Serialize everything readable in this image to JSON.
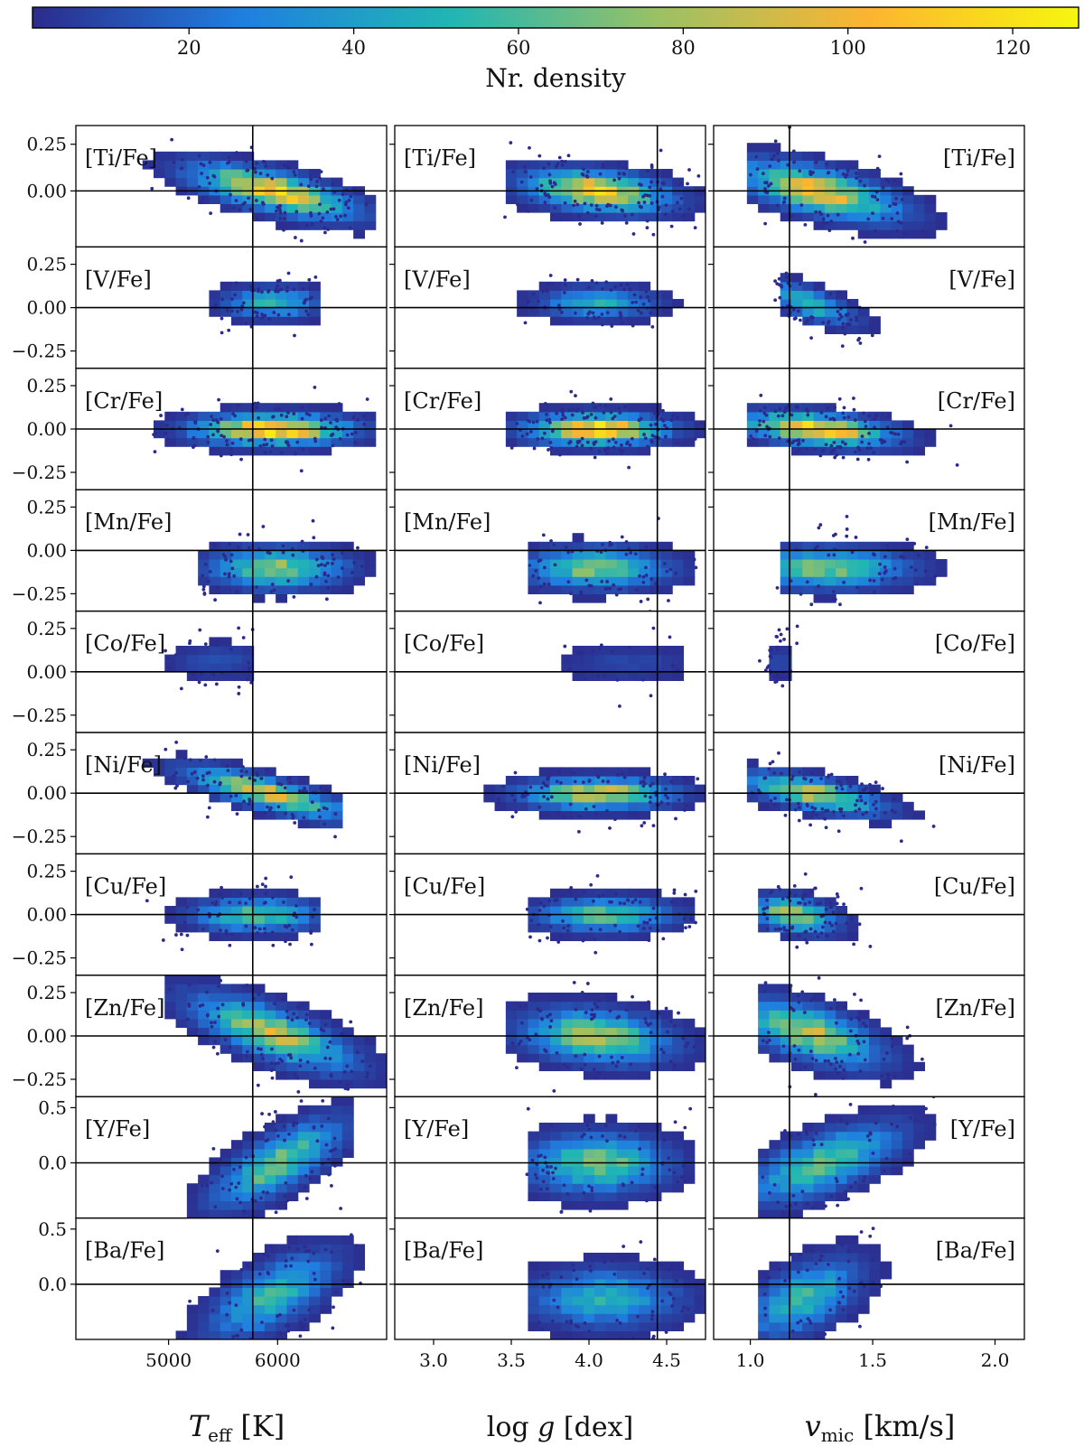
{
  "colorbar": {
    "label": "Nr. density",
    "range": [
      1,
      128
    ],
    "ticks": [
      20,
      40,
      60,
      80,
      100,
      120
    ],
    "colormap": [
      "#440154",
      "#3b528b",
      "#21918c",
      "#5ec962",
      "#fde725"
    ],
    "display_colormap": [
      "#2c2b8c",
      "#1f7fe0",
      "#20b6b4",
      "#9cc164",
      "#fdb430",
      "#f6f60f"
    ]
  },
  "columns": [
    {
      "key": "teff",
      "xlabel": "T_eff [K]",
      "xlabel_main": "T",
      "xlabel_sub": "eff",
      "xlabel_units": " [K]",
      "xlim": [
        4150,
        7000
      ],
      "xticks": [
        5000,
        6000
      ],
      "tick_labels": [
        "5000",
        "6000"
      ],
      "ref": 5772,
      "label_side": "left"
    },
    {
      "key": "logg",
      "xlabel": "log g [dex]",
      "xlabel_main": "log ",
      "xlabel_var": "g",
      "xlabel_units": " [dex]",
      "xlim": [
        2.75,
        4.75
      ],
      "xticks": [
        3.0,
        3.5,
        4.0,
        4.5
      ],
      "tick_labels": [
        "3.0",
        "3.5",
        "4.0",
        "4.5"
      ],
      "ref": 4.44,
      "label_side": "left"
    },
    {
      "key": "vmic",
      "xlabel": "v_mic [km/s]",
      "xlabel_main": "v",
      "xlabel_sub": "mic",
      "xlabel_units": " [km/s]",
      "xlim": [
        0.85,
        2.12
      ],
      "xticks": [
        1.0,
        1.5,
        2.0
      ],
      "tick_labels": [
        "1.0",
        "1.5",
        "2.0"
      ],
      "ref": 1.16,
      "label_side": "right"
    }
  ],
  "rows": [
    {
      "label": "[Ti/Fe]",
      "ylim": [
        -0.3,
        0.35
      ],
      "yticks": [
        0.0,
        0.25
      ],
      "ytick_labels": [
        "0.00",
        "0.25"
      ]
    },
    {
      "label": "[V/Fe]",
      "ylim": [
        -0.35,
        0.35
      ],
      "yticks": [
        -0.25,
        0.0,
        0.25
      ],
      "ytick_labels": [
        "−0.25",
        "0.00",
        "0.25"
      ]
    },
    {
      "label": "[Cr/Fe]",
      "ylim": [
        -0.35,
        0.35
      ],
      "yticks": [
        -0.25,
        0.0,
        0.25
      ],
      "ytick_labels": [
        "−0.25",
        "0.00",
        "0.25"
      ]
    },
    {
      "label": "[Mn/Fe]",
      "ylim": [
        -0.35,
        0.35
      ],
      "yticks": [
        -0.25,
        0.0,
        0.25
      ],
      "ytick_labels": [
        "−0.25",
        "0.00",
        "0.25"
      ]
    },
    {
      "label": "[Co/Fe]",
      "ylim": [
        -0.35,
        0.35
      ],
      "yticks": [
        -0.25,
        0.0,
        0.25
      ],
      "ytick_labels": [
        "−0.25",
        "0.00",
        "0.25"
      ]
    },
    {
      "label": "[Ni/Fe]",
      "ylim": [
        -0.35,
        0.35
      ],
      "yticks": [
        -0.25,
        0.0,
        0.25
      ],
      "ytick_labels": [
        "−0.25",
        "0.00",
        "0.25"
      ]
    },
    {
      "label": "[Cu/Fe]",
      "ylim": [
        -0.35,
        0.35
      ],
      "yticks": [
        -0.25,
        0.0,
        0.25
      ],
      "ytick_labels": [
        "−0.25",
        "0.00",
        "0.25"
      ]
    },
    {
      "label": "[Zn/Fe]",
      "ylim": [
        -0.35,
        0.35
      ],
      "yticks": [
        -0.25,
        0.0,
        0.25
      ],
      "ytick_labels": [
        "−0.25",
        "0.00",
        "0.25"
      ]
    },
    {
      "label": "[Y/Fe]",
      "ylim": [
        -0.5,
        0.6
      ],
      "yticks": [
        0.0,
        0.5
      ],
      "ytick_labels": [
        "0.0",
        "0.5"
      ]
    },
    {
      "label": "[Ba/Fe]",
      "ylim": [
        -0.5,
        0.6
      ],
      "yticks": [
        0.0,
        0.5
      ],
      "ytick_labels": [
        "0.0",
        "0.5"
      ]
    }
  ],
  "chart_data": {
    "type": "heatmap",
    "title": "",
    "description_values": "2D number-density histograms of [X/Fe] versus stellar parameters",
    "xlabels": [
      "T_eff [K]",
      "log g [dex]",
      "v_mic [km/s]"
    ],
    "colorbar_label": "Nr. density",
    "colorbar_range": [
      1,
      128
    ],
    "reference_lines": {
      "teff": 5772,
      "logg": 4.44,
      "vmic": 1.16,
      "abundance": 0.0
    },
    "distributions": [
      {
        "element": "[Ti/Fe]",
        "teff": {
          "cx": 5950,
          "sx": 380,
          "cy": 0.0,
          "sy": 0.06,
          "slope": -0.05,
          "xmin": 4600,
          "xmax": 6900,
          "peak": 110
        },
        "logg": {
          "cx": 4.05,
          "sx": 0.24,
          "cy": 0.0,
          "sy": 0.06,
          "slope": -0.02,
          "xmin": 3.45,
          "xmax": 4.75,
          "peak": 110
        },
        "vmic": {
          "cx": 1.28,
          "sx": 0.17,
          "cy": 0.0,
          "sy": 0.07,
          "slope": -0.05,
          "xmin": 0.98,
          "xmax": 2.0,
          "peak": 100
        }
      },
      {
        "element": "[V/Fe]",
        "teff": {
          "cx": 5950,
          "sx": 230,
          "cy": 0.03,
          "sy": 0.05,
          "slope": 0.0,
          "xmin": 5400,
          "xmax": 6350,
          "peak": 55
        },
        "logg": {
          "cx": 4.05,
          "sx": 0.2,
          "cy": 0.03,
          "sy": 0.05,
          "slope": 0.0,
          "xmin": 3.55,
          "xmax": 4.6,
          "peak": 50
        },
        "vmic": {
          "cx": 1.24,
          "sx": 0.1,
          "cy": 0.03,
          "sy": 0.05,
          "slope": -0.05,
          "xmin": 1.1,
          "xmax": 1.55,
          "peak": 55
        }
      },
      {
        "element": "[Cr/Fe]",
        "teff": {
          "cx": 5950,
          "sx": 370,
          "cy": 0.0,
          "sy": 0.05,
          "slope": 0.0,
          "xmin": 4850,
          "xmax": 6850,
          "peak": 125
        },
        "logg": {
          "cx": 4.05,
          "sx": 0.23,
          "cy": 0.0,
          "sy": 0.05,
          "slope": 0.0,
          "xmin": 3.5,
          "xmax": 4.75,
          "peak": 125
        },
        "vmic": {
          "cx": 1.27,
          "sx": 0.16,
          "cy": 0.0,
          "sy": 0.05,
          "slope": -0.02,
          "xmin": 1.0,
          "xmax": 2.0,
          "peak": 120
        }
      },
      {
        "element": "[Mn/Fe]",
        "teff": {
          "cx": 6000,
          "sx": 320,
          "cy": -0.1,
          "sy": 0.065,
          "slope": 0.0,
          "xmin": 5300,
          "xmax": 6900,
          "peak": 75
        },
        "logg": {
          "cx": 4.05,
          "sx": 0.24,
          "cy": -0.1,
          "sy": 0.065,
          "slope": 0.0,
          "xmin": 3.6,
          "xmax": 4.7,
          "peak": 75
        },
        "vmic": {
          "cx": 1.3,
          "sx": 0.18,
          "cy": -0.1,
          "sy": 0.065,
          "slope": 0.0,
          "xmin": 1.1,
          "xmax": 2.0,
          "peak": 70
        }
      },
      {
        "element": "[Co/Fe]",
        "teff": {
          "cx": 5450,
          "sx": 250,
          "cy": 0.06,
          "sy": 0.06,
          "slope": 0.0,
          "xmin": 4850,
          "xmax": 5800,
          "peak": 12
        },
        "logg": {
          "cx": 4.25,
          "sx": 0.25,
          "cy": 0.05,
          "sy": 0.06,
          "slope": 0.0,
          "xmin": 3.7,
          "xmax": 4.6,
          "peak": 10
        },
        "vmic": {
          "cx": 1.12,
          "sx": 0.03,
          "cy": 0.06,
          "sy": 0.06,
          "slope": 0.0,
          "xmin": 1.0,
          "xmax": 1.2,
          "peak": 12
        }
      },
      {
        "element": "[Ni/Fe]",
        "teff": {
          "cx": 5900,
          "sx": 370,
          "cy": 0.0,
          "sy": 0.05,
          "slope": -0.06,
          "xmin": 4700,
          "xmax": 6550,
          "peak": 95
        },
        "logg": {
          "cx": 4.05,
          "sx": 0.25,
          "cy": 0.0,
          "sy": 0.05,
          "slope": 0.0,
          "xmin": 3.35,
          "xmax": 4.75,
          "peak": 95
        },
        "vmic": {
          "cx": 1.25,
          "sx": 0.15,
          "cy": 0.0,
          "sy": 0.05,
          "slope": -0.04,
          "xmin": 1.0,
          "xmax": 2.0,
          "peak": 90
        }
      },
      {
        "element": "[Cu/Fe]",
        "teff": {
          "cx": 5800,
          "sx": 300,
          "cy": 0.0,
          "sy": 0.055,
          "slope": 0.0,
          "xmin": 4750,
          "xmax": 6350,
          "peak": 65
        },
        "logg": {
          "cx": 4.1,
          "sx": 0.23,
          "cy": 0.0,
          "sy": 0.055,
          "slope": 0.0,
          "xmin": 3.6,
          "xmax": 4.7,
          "peak": 65
        },
        "vmic": {
          "cx": 1.18,
          "sx": 0.09,
          "cy": 0.0,
          "sy": 0.055,
          "slope": -0.02,
          "xmin": 1.05,
          "xmax": 1.55,
          "peak": 85
        }
      },
      {
        "element": "[Zn/Fe]",
        "teff": {
          "cx": 5950,
          "sx": 380,
          "cy": 0.02,
          "sy": 0.085,
          "slope": -0.08,
          "xmin": 5000,
          "xmax": 7000,
          "peak": 85
        },
        "logg": {
          "cx": 4.05,
          "sx": 0.25,
          "cy": 0.0,
          "sy": 0.085,
          "slope": -0.02,
          "xmin": 3.5,
          "xmax": 4.75,
          "peak": 80
        },
        "vmic": {
          "cx": 1.24,
          "sx": 0.15,
          "cy": 0.02,
          "sy": 0.085,
          "slope": -0.06,
          "xmin": 1.05,
          "xmax": 2.0,
          "peak": 85
        }
      },
      {
        "element": "[Y/Fe]",
        "teff": {
          "cx": 6000,
          "sx": 300,
          "cy": 0.0,
          "sy": 0.15,
          "slope": 0.15,
          "xmin": 5200,
          "xmax": 6700,
          "peak": 70
        },
        "logg": {
          "cx": 4.05,
          "sx": 0.24,
          "cy": 0.0,
          "sy": 0.15,
          "slope": 0.0,
          "xmin": 3.6,
          "xmax": 4.7,
          "peak": 70
        },
        "vmic": {
          "cx": 1.3,
          "sx": 0.16,
          "cy": 0.0,
          "sy": 0.15,
          "slope": 0.12,
          "xmin": 1.05,
          "xmax": 1.9,
          "peak": 65
        }
      },
      {
        "element": "[Ba/Fe]",
        "teff": {
          "cx": 5950,
          "sx": 300,
          "cy": -0.1,
          "sy": 0.17,
          "slope": 0.13,
          "xmin": 4700,
          "xmax": 6800,
          "peak": 55
        },
        "logg": {
          "cx": 4.1,
          "sx": 0.25,
          "cy": -0.12,
          "sy": 0.15,
          "slope": 0.0,
          "xmin": 3.6,
          "xmax": 4.75,
          "peak": 50
        },
        "vmic": {
          "cx": 1.22,
          "sx": 0.12,
          "cy": -0.12,
          "sy": 0.17,
          "slope": 0.1,
          "xmin": 1.05,
          "xmax": 1.65,
          "peak": 55
        }
      }
    ]
  }
}
